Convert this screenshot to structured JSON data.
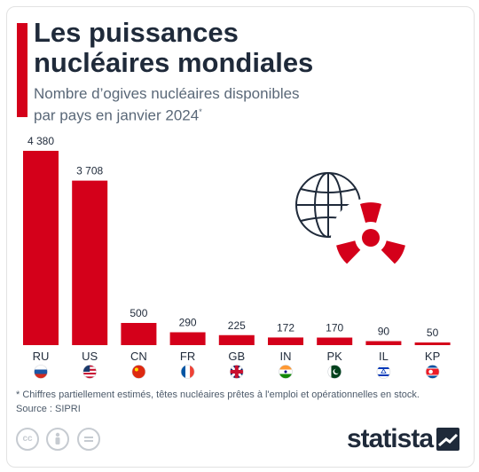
{
  "title_line1": "Les puissances",
  "title_line2": "nucléaires mondiales",
  "subtitle_line1": "Nombre d’ogives nucléaires disponibles",
  "subtitle_line2": "par pays en janvier 2024",
  "subtitle_mark": "*",
  "footnote": "* Chiffres partiellement estimés, têtes nucléaires prêtes à l'emploi et opérationnelles en stock.",
  "source": "Source : SIPRI",
  "brand": "statista",
  "colors": {
    "bar": "#d4001a",
    "title": "#1f2a3a",
    "subtitle": "#5a6878"
  },
  "icons": [
    "globe-icon",
    "radiation-icon",
    "creative-commons-icon",
    "attribution-icon",
    "no-derivatives-icon",
    "statista-logo-icon"
  ],
  "chart_data": {
    "type": "bar",
    "categories": [
      "RU",
      "US",
      "CN",
      "FR",
      "GB",
      "IN",
      "PK",
      "IL",
      "KP"
    ],
    "values": [
      4380,
      3708,
      500,
      290,
      225,
      172,
      170,
      90,
      50
    ],
    "value_labels": [
      "4 380",
      "3 708",
      "500",
      "290",
      "225",
      "172",
      "170",
      "90",
      "50"
    ],
    "title": "Les puissances nucléaires mondiales",
    "xlabel": "",
    "ylabel": "",
    "ylim": [
      0,
      4380
    ],
    "grid": false,
    "legend": "none"
  }
}
